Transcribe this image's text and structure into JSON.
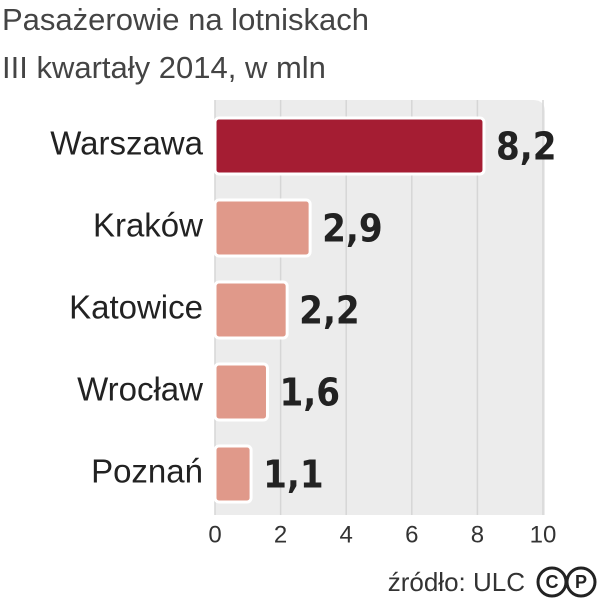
{
  "chart_data": {
    "type": "bar",
    "orientation": "horizontal",
    "title": "Pasażerowie na lotniskach",
    "subtitle": "III kwartały 2014, w mln",
    "categories": [
      "Warszawa",
      "Kraków",
      "Katowice",
      "Wrocław",
      "Poznań"
    ],
    "values": [
      8.2,
      2.9,
      2.2,
      1.6,
      1.1
    ],
    "value_labels": [
      "8,2",
      "2,9",
      "2,2",
      "1,6",
      "1,1"
    ],
    "colors": [
      "#a51d33",
      "#e0998a",
      "#e0998a",
      "#e0998a",
      "#e0998a"
    ],
    "xlim": [
      0,
      10
    ],
    "xticks": [
      0,
      2,
      4,
      6,
      8,
      10
    ],
    "grid": true,
    "source": "źródło: ULC"
  }
}
